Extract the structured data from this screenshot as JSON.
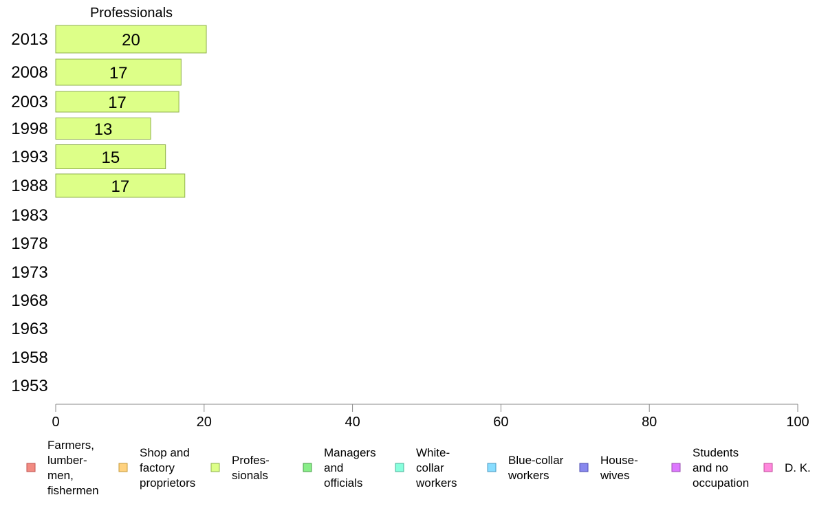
{
  "chart_data": {
    "type": "bar",
    "orientation": "horizontal",
    "title": "",
    "column_title": "Professionals",
    "categories": [
      "2013",
      "2008",
      "2003",
      "1998",
      "1993",
      "1988",
      "1983",
      "1978",
      "1973",
      "1968",
      "1963",
      "1958",
      "1953"
    ],
    "series": [
      {
        "name": "Profes- sionals",
        "color": "#ddff88",
        "stroke": "#8fb04c",
        "values": [
          20.3,
          16.9,
          16.6,
          12.8,
          14.8,
          17.4,
          null,
          null,
          null,
          null,
          null,
          null,
          null
        ],
        "labels": [
          "20",
          "17",
          "17",
          "13",
          "15",
          "17",
          "",
          "",
          "",
          "",
          "",
          "",
          ""
        ]
      }
    ],
    "xlim": [
      0,
      100
    ],
    "xticks": [
      "0",
      "20",
      "40",
      "60",
      "80",
      "100"
    ],
    "xlabel": "",
    "ylabel": "",
    "grid": false,
    "legend_position": "bottom",
    "legend": [
      {
        "label": "Farmers, lumber- men, fishermen",
        "lines": [
          "Farmers,",
          "lumber-",
          "men,",
          "fishermen"
        ],
        "color": "#f28b82",
        "stroke": "#c0504d"
      },
      {
        "label": "Shop and factory proprietors",
        "lines": [
          "Shop and",
          "factory",
          "proprietors"
        ],
        "color": "#ffd27f",
        "stroke": "#c49a3a"
      },
      {
        "label": "Profes- sionals",
        "lines": [
          "Profes-",
          "sionals"
        ],
        "color": "#ddff88",
        "stroke": "#8fb04c"
      },
      {
        "label": "Managers and officials",
        "lines": [
          "Managers",
          "and",
          "officials"
        ],
        "color": "#88ee88",
        "stroke": "#4c9f4c"
      },
      {
        "label": "White- collar workers",
        "lines": [
          "White-",
          "collar",
          "workers"
        ],
        "color": "#88ffdd",
        "stroke": "#4cb09a"
      },
      {
        "label": "Blue-collar workers",
        "lines": [
          "Blue-collar",
          "workers"
        ],
        "color": "#88ddff",
        "stroke": "#4c9ac0"
      },
      {
        "label": "House- wives",
        "lines": [
          "House-",
          "wives"
        ],
        "color": "#8888ee",
        "stroke": "#4c4cb0"
      },
      {
        "label": "Students and no occupation",
        "lines": [
          "Students",
          "and no",
          "occupation"
        ],
        "color": "#dd77ff",
        "stroke": "#9a4cb0"
      },
      {
        "label": "D. K.",
        "lines": [
          "D. K."
        ],
        "color": "#ff88dd",
        "stroke": "#c04c9a"
      }
    ]
  }
}
